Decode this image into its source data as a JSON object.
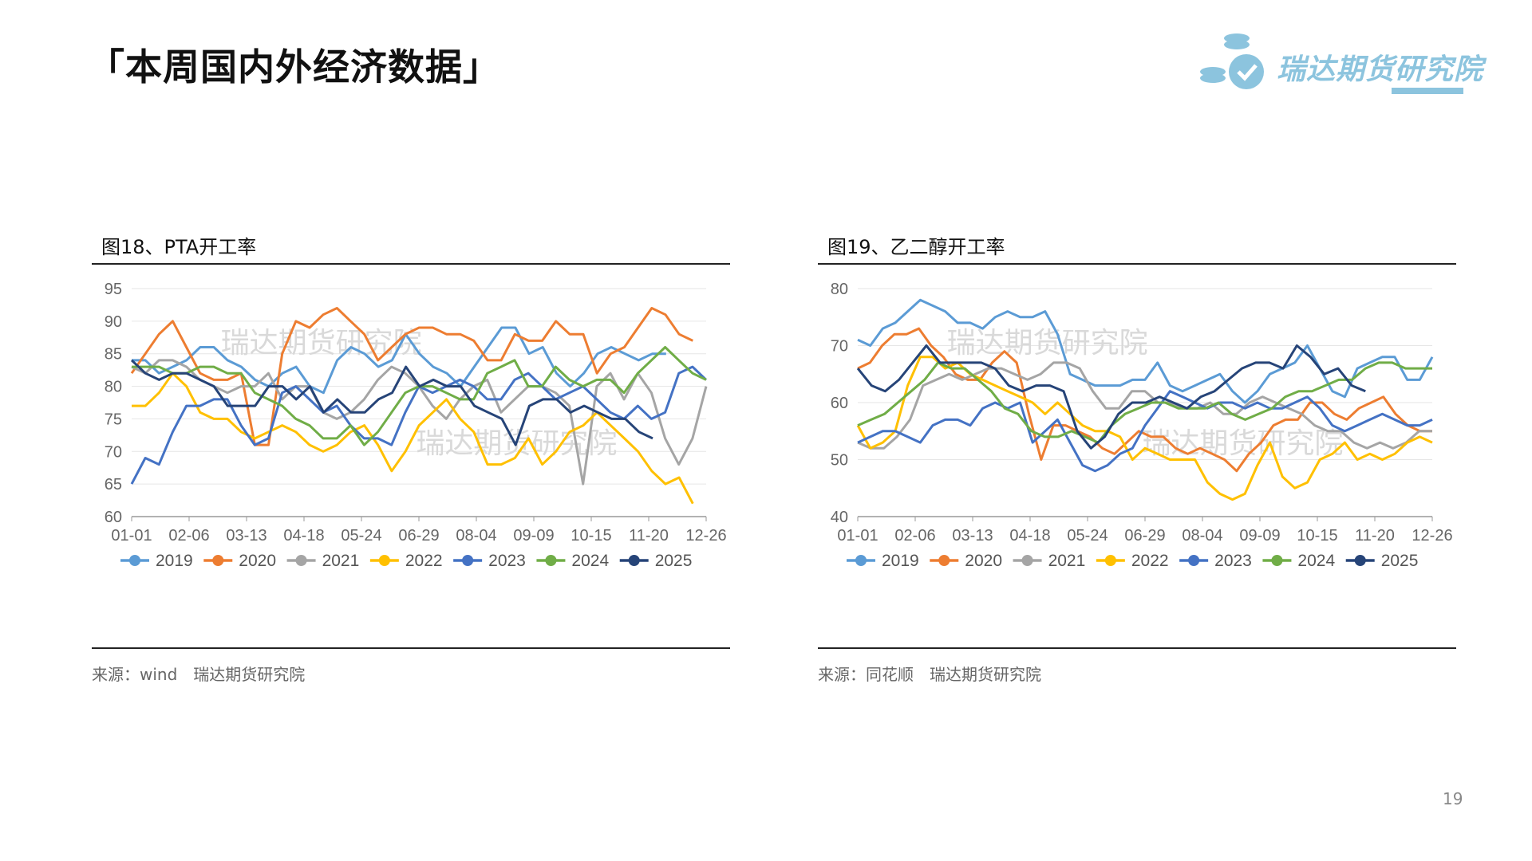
{
  "page": {
    "title": "「本周国内外经济数据」",
    "logo_text": "瑞达期货研究院",
    "page_number": "19"
  },
  "panels": [
    {
      "title": "图18、PTA开工率",
      "source": "来源：wind　瑞达期货研究院"
    },
    {
      "title": "图19、乙二醇开工率",
      "source": "来源：同花顺　瑞达期货研究院"
    }
  ],
  "colors": {
    "2019": "#5b9bd5",
    "2020": "#ed7d31",
    "2021": "#a5a5a5",
    "2022": "#ffc000",
    "2023": "#4472c4",
    "2024": "#70ad47",
    "2025": "#264478"
  },
  "chart_data": [
    {
      "type": "line",
      "watermark": "瑞达期货研究院",
      "ylim": [
        60,
        95
      ],
      "yticks": [
        "60",
        "65",
        "70",
        "75",
        "80",
        "85",
        "90",
        "95"
      ],
      "grid": true,
      "legend": "bottom",
      "x_ticks": [
        "01-01",
        "02-06",
        "03-13",
        "04-18",
        "05-24",
        "06-29",
        "08-04",
        "09-09",
        "10-15",
        "11-20",
        "12-26"
      ],
      "series": [
        {
          "name": "2019",
          "values": [
            84,
            84,
            82,
            83,
            84,
            86,
            86,
            84,
            83,
            81,
            80,
            82,
            83,
            80,
            79,
            84,
            86,
            85,
            83,
            84,
            88,
            85,
            83,
            82,
            80,
            83,
            86,
            89,
            89,
            85,
            86,
            82,
            80,
            82,
            85,
            86,
            85,
            84,
            85,
            85
          ]
        },
        {
          "name": "2020",
          "values": [
            82,
            85,
            88,
            90,
            86,
            82,
            81,
            81,
            82,
            71,
            71,
            85,
            90,
            89,
            91,
            92,
            90,
            88,
            84,
            86,
            88,
            89,
            89,
            88,
            88,
            87,
            84,
            84,
            88,
            87,
            87,
            90,
            88,
            88,
            82,
            85,
            86,
            89,
            92,
            91,
            88,
            87
          ]
        },
        {
          "name": "2021",
          "values": [
            83,
            82,
            84,
            84,
            83,
            81,
            80,
            79,
            80,
            80,
            82,
            78,
            80,
            80,
            76,
            75,
            76,
            78,
            81,
            83,
            82,
            80,
            77,
            75,
            78,
            80,
            81,
            76,
            78,
            80,
            80,
            79,
            77,
            65,
            80,
            82,
            78,
            82,
            79,
            72,
            68,
            72,
            80
          ]
        },
        {
          "name": "2022",
          "values": [
            77,
            77,
            79,
            82,
            80,
            76,
            75,
            75,
            73,
            72,
            73,
            74,
            73,
            71,
            70,
            71,
            73,
            74,
            71,
            67,
            70,
            74,
            76,
            78,
            75,
            73,
            68,
            68,
            69,
            72,
            68,
            70,
            73,
            74,
            76,
            74,
            72,
            70,
            67,
            65,
            66,
            62
          ]
        },
        {
          "name": "2023",
          "values": [
            65,
            69,
            68,
            73,
            77,
            77,
            78,
            78,
            74,
            71,
            72,
            79,
            80,
            78,
            76,
            77,
            74,
            72,
            72,
            71,
            76,
            80,
            79,
            80,
            81,
            80,
            78,
            78,
            81,
            82,
            80,
            78,
            79,
            80,
            78,
            76,
            75,
            77,
            75,
            76,
            82,
            83,
            81
          ]
        },
        {
          "name": "2024",
          "values": [
            83,
            83,
            83,
            82,
            82,
            83,
            83,
            82,
            82,
            79,
            78,
            77,
            75,
            74,
            72,
            72,
            74,
            71,
            73,
            76,
            79,
            80,
            80,
            79,
            78,
            78,
            82,
            83,
            84,
            80,
            80,
            83,
            81,
            80,
            81,
            81,
            79,
            82,
            84,
            86,
            84,
            82,
            81
          ]
        },
        {
          "name": "2025",
          "values": [
            84,
            82,
            81,
            82,
            82,
            81,
            80,
            77,
            77,
            77,
            80,
            80,
            78,
            80,
            76,
            78,
            76,
            76,
            78,
            79,
            83,
            80,
            81,
            80,
            80,
            77,
            76,
            75,
            71,
            77,
            78,
            78,
            76,
            77,
            76,
            75,
            75,
            73,
            72
          ]
        }
      ]
    },
    {
      "type": "line",
      "watermark": "瑞达期货研究院",
      "ylim": [
        40,
        80
      ],
      "yticks": [
        "40",
        "50",
        "60",
        "70",
        "80"
      ],
      "grid": true,
      "legend": "bottom",
      "x_ticks": [
        "01-01",
        "02-06",
        "03-13",
        "04-18",
        "05-24",
        "06-29",
        "08-04",
        "09-09",
        "10-15",
        "11-20",
        "12-26"
      ],
      "series": [
        {
          "name": "2019",
          "values": [
            71,
            70,
            73,
            74,
            76,
            78,
            77,
            76,
            74,
            74,
            73,
            75,
            76,
            75,
            75,
            76,
            72,
            65,
            64,
            63,
            63,
            63,
            64,
            64,
            67,
            63,
            62,
            63,
            64,
            65,
            62,
            60,
            62,
            65,
            66,
            67,
            70,
            66,
            62,
            61,
            66,
            67,
            68,
            68,
            64,
            64,
            68
          ]
        },
        {
          "name": "2020",
          "values": [
            66,
            67,
            70,
            72,
            72,
            73,
            70,
            68,
            65,
            64,
            64,
            67,
            69,
            67,
            58,
            50,
            56,
            56,
            55,
            54,
            52,
            51,
            53,
            55,
            54,
            54,
            52,
            51,
            52,
            51,
            50,
            48,
            51,
            53,
            56,
            57,
            57,
            60,
            60,
            58,
            57,
            59,
            60,
            61,
            58,
            56,
            55,
            55
          ]
        },
        {
          "name": "2021",
          "values": [
            53,
            52,
            52,
            54,
            57,
            63,
            64,
            65,
            64,
            65,
            66,
            66,
            65,
            64,
            65,
            67,
            67,
            66,
            62,
            59,
            59,
            62,
            62,
            60,
            60,
            59,
            59,
            60,
            58,
            58,
            60,
            61,
            60,
            59,
            58,
            56,
            55,
            55,
            53,
            52,
            53,
            52,
            53,
            55,
            55
          ]
        },
        {
          "name": "2022",
          "values": [
            56,
            52,
            53,
            55,
            63,
            68,
            68,
            66,
            67,
            65,
            64,
            63,
            62,
            61,
            60,
            58,
            60,
            58,
            56,
            55,
            55,
            54,
            50,
            52,
            51,
            50,
            50,
            50,
            46,
            44,
            43,
            44,
            49,
            53,
            47,
            45,
            46,
            50,
            51,
            53,
            50,
            51,
            50,
            51,
            53,
            54,
            53
          ]
        },
        {
          "name": "2023",
          "values": [
            53,
            54,
            55,
            55,
            54,
            53,
            56,
            57,
            57,
            56,
            59,
            60,
            59,
            60,
            53,
            55,
            57,
            53,
            49,
            48,
            49,
            51,
            52,
            56,
            59,
            62,
            61,
            60,
            59,
            60,
            60,
            59,
            60,
            59,
            59,
            60,
            61,
            59,
            56,
            55,
            56,
            57,
            58,
            57,
            56,
            56,
            57
          ]
        },
        {
          "name": "2024",
          "values": [
            56,
            57,
            58,
            60,
            62,
            64,
            67,
            66,
            66,
            64,
            62,
            59,
            58,
            55,
            54,
            54,
            55,
            54,
            53,
            56,
            58,
            59,
            60,
            60,
            59,
            59,
            59,
            60,
            58,
            57,
            58,
            59,
            61,
            62,
            62,
            63,
            64,
            64,
            66,
            67,
            67,
            66,
            66,
            66
          ]
        },
        {
          "name": "2025",
          "values": [
            66,
            63,
            62,
            64,
            67,
            70,
            67,
            67,
            67,
            67,
            66,
            63,
            62,
            63,
            63,
            62,
            55,
            52,
            54,
            58,
            60,
            60,
            61,
            60,
            59,
            61,
            62,
            64,
            66,
            67,
            67,
            66,
            70,
            68,
            65,
            66,
            63,
            62
          ]
        }
      ]
    }
  ]
}
